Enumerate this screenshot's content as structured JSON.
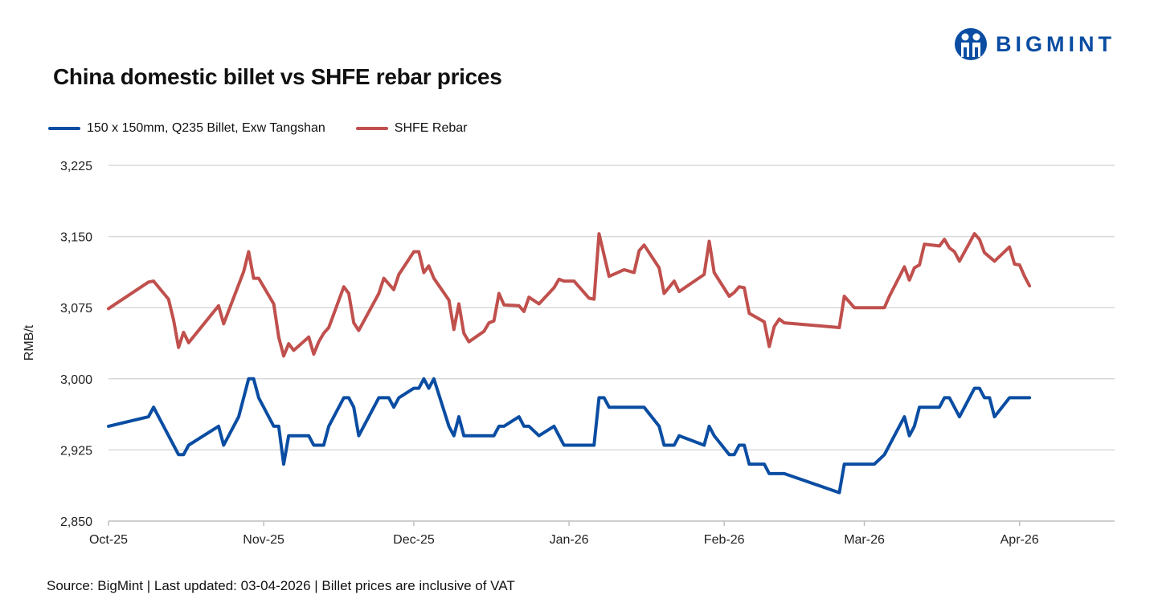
{
  "brand": {
    "name": "BIGMINT",
    "color": "#0a4da2"
  },
  "chart_data": {
    "type": "line",
    "title": "China domestic billet vs SHFE rebar prices",
    "ylabel": "RMB/t",
    "xlabel": "",
    "ylim": [
      2850,
      3225
    ],
    "yticks": [
      2850,
      2925,
      3000,
      3075,
      3150,
      3225
    ],
    "ytick_labels": [
      "2,850",
      "2,925",
      "3,000",
      "3,075",
      "3,150",
      "3,225"
    ],
    "xlim": [
      "2025-10-01",
      "2026-04-20"
    ],
    "xticks": [
      "2025-10-01",
      "2025-11-01",
      "2025-12-01",
      "2026-01-01",
      "2026-02-01",
      "2026-03-01",
      "2026-04-01"
    ],
    "xtick_labels": [
      "Oct-25",
      "Nov-25",
      "Dec-25",
      "Jan-26",
      "Feb-26",
      "Mar-26",
      "Apr-26"
    ],
    "grid": "horizontal",
    "legend_placement": "top-left",
    "series": [
      {
        "name": "150 x 150mm, Q235 Billet, Exw Tangshan",
        "color": "#0a4da2",
        "points": [
          [
            "2025-10-01",
            2950
          ],
          [
            "2025-10-09",
            2960
          ],
          [
            "2025-10-10",
            2970
          ],
          [
            "2025-10-15",
            2920
          ],
          [
            "2025-10-16",
            2920
          ],
          [
            "2025-10-17",
            2930
          ],
          [
            "2025-10-23",
            2950
          ],
          [
            "2025-10-24",
            2930
          ],
          [
            "2025-10-27",
            2960
          ],
          [
            "2025-10-29",
            3000
          ],
          [
            "2025-10-30",
            3000
          ],
          [
            "2025-10-31",
            2980
          ],
          [
            "2025-11-03",
            2950
          ],
          [
            "2025-11-04",
            2950
          ],
          [
            "2025-11-05",
            2910
          ],
          [
            "2025-11-06",
            2940
          ],
          [
            "2025-11-10",
            2940
          ],
          [
            "2025-11-11",
            2930
          ],
          [
            "2025-11-13",
            2930
          ],
          [
            "2025-11-14",
            2950
          ],
          [
            "2025-11-17",
            2980
          ],
          [
            "2025-11-18",
            2980
          ],
          [
            "2025-11-19",
            2970
          ],
          [
            "2025-11-20",
            2940
          ],
          [
            "2025-11-24",
            2980
          ],
          [
            "2025-11-26",
            2980
          ],
          [
            "2025-11-27",
            2970
          ],
          [
            "2025-11-28",
            2980
          ],
          [
            "2025-12-01",
            2990
          ],
          [
            "2025-12-02",
            2990
          ],
          [
            "2025-12-03",
            3000
          ],
          [
            "2025-12-04",
            2990
          ],
          [
            "2025-12-05",
            3000
          ],
          [
            "2025-12-08",
            2950
          ],
          [
            "2025-12-09",
            2940
          ],
          [
            "2025-12-10",
            2960
          ],
          [
            "2025-12-11",
            2940
          ],
          [
            "2025-12-17",
            2940
          ],
          [
            "2025-12-18",
            2950
          ],
          [
            "2025-12-19",
            2950
          ],
          [
            "2025-12-22",
            2960
          ],
          [
            "2025-12-23",
            2950
          ],
          [
            "2025-12-24",
            2950
          ],
          [
            "2025-12-26",
            2940
          ],
          [
            "2025-12-29",
            2950
          ],
          [
            "2025-12-31",
            2930
          ],
          [
            "2026-01-06",
            2930
          ],
          [
            "2026-01-07",
            2980
          ],
          [
            "2026-01-08",
            2980
          ],
          [
            "2026-01-09",
            2970
          ],
          [
            "2026-01-16",
            2970
          ],
          [
            "2026-01-19",
            2950
          ],
          [
            "2026-01-20",
            2930
          ],
          [
            "2026-01-22",
            2930
          ],
          [
            "2026-01-23",
            2940
          ],
          [
            "2026-01-28",
            2930
          ],
          [
            "2026-01-29",
            2950
          ],
          [
            "2026-01-30",
            2940
          ],
          [
            "2026-02-02",
            2920
          ],
          [
            "2026-02-03",
            2920
          ],
          [
            "2026-02-04",
            2930
          ],
          [
            "2026-02-05",
            2930
          ],
          [
            "2026-02-06",
            2910
          ],
          [
            "2026-02-09",
            2910
          ],
          [
            "2026-02-10",
            2900
          ],
          [
            "2026-02-13",
            2900
          ],
          [
            "2026-02-24",
            2880
          ],
          [
            "2026-02-25",
            2910
          ],
          [
            "2026-03-03",
            2910
          ],
          [
            "2026-03-05",
            2920
          ],
          [
            "2026-03-09",
            2960
          ],
          [
            "2026-03-10",
            2940
          ],
          [
            "2026-03-11",
            2950
          ],
          [
            "2026-03-12",
            2970
          ],
          [
            "2026-03-16",
            2970
          ],
          [
            "2026-03-17",
            2980
          ],
          [
            "2026-03-18",
            2980
          ],
          [
            "2026-03-20",
            2960
          ],
          [
            "2026-03-23",
            2990
          ],
          [
            "2026-03-24",
            2990
          ],
          [
            "2026-03-25",
            2980
          ],
          [
            "2026-03-26",
            2980
          ],
          [
            "2026-03-27",
            2960
          ],
          [
            "2026-03-30",
            2980
          ],
          [
            "2026-04-03",
            2980
          ]
        ]
      },
      {
        "name": "SHFE Rebar",
        "color": "#c0504d",
        "points": [
          [
            "2025-10-01",
            3074
          ],
          [
            "2025-10-09",
            3102
          ],
          [
            "2025-10-10",
            3103
          ],
          [
            "2025-10-13",
            3084
          ],
          [
            "2025-10-14",
            3062
          ],
          [
            "2025-10-15",
            3033
          ],
          [
            "2025-10-16",
            3049
          ],
          [
            "2025-10-17",
            3038
          ],
          [
            "2025-10-23",
            3077
          ],
          [
            "2025-10-24",
            3058
          ],
          [
            "2025-10-28",
            3113
          ],
          [
            "2025-10-29",
            3134
          ],
          [
            "2025-10-30",
            3106
          ],
          [
            "2025-10-31",
            3106
          ],
          [
            "2025-11-03",
            3079
          ],
          [
            "2025-11-04",
            3044
          ],
          [
            "2025-11-05",
            3024
          ],
          [
            "2025-11-06",
            3037
          ],
          [
            "2025-11-07",
            3030
          ],
          [
            "2025-11-10",
            3044
          ],
          [
            "2025-11-11",
            3026
          ],
          [
            "2025-11-12",
            3039
          ],
          [
            "2025-11-13",
            3048
          ],
          [
            "2025-11-14",
            3054
          ],
          [
            "2025-11-17",
            3097
          ],
          [
            "2025-11-18",
            3090
          ],
          [
            "2025-11-19",
            3059
          ],
          [
            "2025-11-20",
            3051
          ],
          [
            "2025-11-24",
            3090
          ],
          [
            "2025-11-25",
            3106
          ],
          [
            "2025-11-27",
            3094
          ],
          [
            "2025-11-28",
            3110
          ],
          [
            "2025-12-01",
            3134
          ],
          [
            "2025-12-02",
            3134
          ],
          [
            "2025-12-03",
            3112
          ],
          [
            "2025-12-04",
            3119
          ],
          [
            "2025-12-05",
            3106
          ],
          [
            "2025-12-08",
            3083
          ],
          [
            "2025-12-09",
            3052
          ],
          [
            "2025-12-10",
            3079
          ],
          [
            "2025-12-11",
            3048
          ],
          [
            "2025-12-12",
            3039
          ],
          [
            "2025-12-15",
            3050
          ],
          [
            "2025-12-16",
            3059
          ],
          [
            "2025-12-17",
            3061
          ],
          [
            "2025-12-18",
            3090
          ],
          [
            "2025-12-19",
            3078
          ],
          [
            "2025-12-22",
            3077
          ],
          [
            "2025-12-23",
            3071
          ],
          [
            "2025-12-24",
            3086
          ],
          [
            "2025-12-26",
            3079
          ],
          [
            "2025-12-29",
            3096
          ],
          [
            "2025-12-30",
            3105
          ],
          [
            "2025-12-31",
            3103
          ],
          [
            "2026-01-02",
            3103
          ],
          [
            "2026-01-05",
            3085
          ],
          [
            "2026-01-06",
            3084
          ],
          [
            "2026-01-07",
            3153
          ],
          [
            "2026-01-09",
            3108
          ],
          [
            "2026-01-12",
            3115
          ],
          [
            "2026-01-14",
            3112
          ],
          [
            "2026-01-15",
            3135
          ],
          [
            "2026-01-16",
            3141
          ],
          [
            "2026-01-19",
            3117
          ],
          [
            "2026-01-20",
            3090
          ],
          [
            "2026-01-22",
            3103
          ],
          [
            "2026-01-23",
            3092
          ],
          [
            "2026-01-28",
            3110
          ],
          [
            "2026-01-29",
            3145
          ],
          [
            "2026-01-30",
            3112
          ],
          [
            "2026-02-02",
            3087
          ],
          [
            "2026-02-03",
            3091
          ],
          [
            "2026-02-04",
            3097
          ],
          [
            "2026-02-05",
            3096
          ],
          [
            "2026-02-06",
            3069
          ],
          [
            "2026-02-09",
            3060
          ],
          [
            "2026-02-10",
            3034
          ],
          [
            "2026-02-11",
            3055
          ],
          [
            "2026-02-12",
            3063
          ],
          [
            "2026-02-13",
            3059
          ],
          [
            "2026-02-24",
            3054
          ],
          [
            "2026-02-25",
            3087
          ],
          [
            "2026-02-27",
            3075
          ],
          [
            "2026-03-05",
            3075
          ],
          [
            "2026-03-06",
            3087
          ],
          [
            "2026-03-09",
            3118
          ],
          [
            "2026-03-10",
            3104
          ],
          [
            "2026-03-11",
            3117
          ],
          [
            "2026-03-12",
            3120
          ],
          [
            "2026-03-13",
            3142
          ],
          [
            "2026-03-16",
            3140
          ],
          [
            "2026-03-17",
            3147
          ],
          [
            "2026-03-18",
            3138
          ],
          [
            "2026-03-19",
            3134
          ],
          [
            "2026-03-20",
            3124
          ],
          [
            "2026-03-23",
            3153
          ],
          [
            "2026-03-24",
            3147
          ],
          [
            "2026-03-25",
            3133
          ],
          [
            "2026-03-27",
            3124
          ],
          [
            "2026-03-30",
            3139
          ],
          [
            "2026-03-31",
            3121
          ],
          [
            "2026-04-01",
            3120
          ],
          [
            "2026-04-02",
            3108
          ],
          [
            "2026-04-03",
            3098
          ]
        ]
      }
    ]
  },
  "source": "Source: BigMint | Last updated: 03-04-2026 | Billet prices are inclusive of VAT"
}
